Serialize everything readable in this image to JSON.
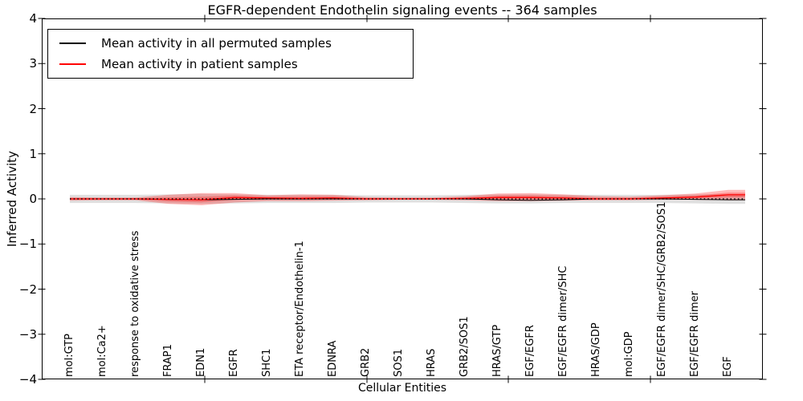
{
  "chart_data": {
    "type": "line",
    "title": "EGFR-dependent Endothelin signaling events -- 364 samples",
    "xlabel": "Cellular Entities",
    "ylabel": "Inferred Activity",
    "ylim": [
      -4,
      4
    ],
    "yticks": [
      "4",
      "3",
      "2",
      "1",
      "0",
      "−1",
      "−2",
      "−3",
      "−4"
    ],
    "ytick_values": [
      4,
      3,
      2,
      1,
      0,
      -1,
      -2,
      -3,
      -4
    ],
    "grid": false,
    "legend_position": "upper left",
    "zero_line": {
      "style": "dotted",
      "color": "#000000",
      "y": 0
    },
    "categories": [
      "mol:GTP",
      "mol:Ca2+",
      "response to oxidative stress",
      "FRAP1",
      "EDN1",
      "EGFR",
      "SHC1",
      "ETA receptor/Endothelin-1",
      "EDNRA",
      "GRB2",
      "SOS1",
      "HRAS",
      "GRB2/SOS1",
      "HRAS/GTP",
      "EGF/EGFR",
      "EGF/EGFR dimer/SHC",
      "HRAS/GDP",
      "mol:GDP",
      "EGF/EGFR dimer/SHC/GRB2/SOS1",
      "EGF/EGFR dimer",
      "EGF"
    ],
    "series": [
      {
        "name": "Mean activity in all permuted samples",
        "color": "#000000",
        "line_width": 1,
        "band_color": "rgba(0,0,0,0.12)",
        "values": [
          0,
          0,
          0,
          -0.01,
          -0.02,
          -0.01,
          0,
          0,
          0,
          0,
          0,
          0,
          0,
          -0.02,
          -0.03,
          -0.02,
          0,
          0,
          0,
          -0.01,
          -0.02
        ],
        "band_upper": [
          0.09,
          0.09,
          0.09,
          0.1,
          0.11,
          0.1,
          0.09,
          0.09,
          0.09,
          0.08,
          0.08,
          0.08,
          0.09,
          0.1,
          0.1,
          0.09,
          0.09,
          0.09,
          0.09,
          0.1,
          0.1
        ],
        "band_lower": [
          -0.09,
          -0.09,
          -0.09,
          -0.1,
          -0.11,
          -0.1,
          -0.09,
          -0.09,
          -0.09,
          -0.08,
          -0.08,
          -0.08,
          -0.09,
          -0.1,
          -0.1,
          -0.09,
          -0.09,
          -0.09,
          -0.09,
          -0.1,
          -0.11
        ]
      },
      {
        "name": "Mean activity in patient samples",
        "color": "#ff0000",
        "line_width": 1.3,
        "band_color": "rgba(255,0,0,0.27)",
        "values": [
          0,
          0,
          0,
          -0.01,
          -0.02,
          0.03,
          0.02,
          0.01,
          0.02,
          0,
          0,
          0,
          0.01,
          0.03,
          0.03,
          0.02,
          0,
          0,
          0.02,
          0.04,
          0.09
        ],
        "band_upper": [
          0.04,
          0.03,
          0.03,
          0.09,
          0.13,
          0.13,
          0.08,
          0.1,
          0.09,
          0.04,
          0.03,
          0.03,
          0.06,
          0.12,
          0.13,
          0.1,
          0.06,
          0.05,
          0.08,
          0.12,
          0.2
        ],
        "band_lower": [
          -0.04,
          -0.03,
          -0.03,
          -0.11,
          -0.14,
          -0.08,
          -0.05,
          -0.05,
          -0.04,
          -0.03,
          -0.02,
          -0.02,
          -0.03,
          -0.05,
          -0.05,
          -0.04,
          -0.03,
          -0.03,
          -0.02,
          -0.02,
          -0.03
        ]
      }
    ]
  }
}
